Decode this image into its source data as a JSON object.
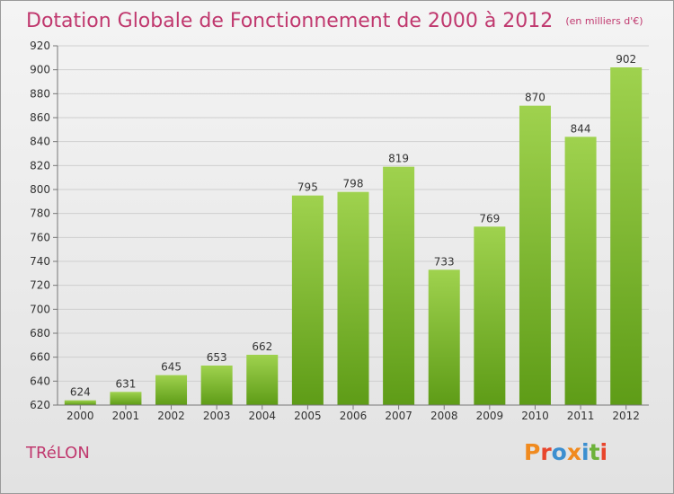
{
  "header": {
    "title": "Dotation Globale de Fonctionnement de 2000 à 2012",
    "subtitle": "(en milliers d'€)"
  },
  "footer": {
    "commune": "TRéLON",
    "brand": "Proxiti"
  },
  "colors": {
    "title": "#c0386e",
    "bar_top": "#9fd24e",
    "bar_bottom": "#5e9c17",
    "grid": "#cfcfcf",
    "logo": [
      "#f08a1e",
      "#e8452c",
      "#3c8fd0",
      "#f08a1e",
      "#3c8fd0",
      "#6db23a",
      "#e8452c"
    ]
  },
  "chart_data": {
    "type": "bar",
    "categories": [
      "2000",
      "2001",
      "2002",
      "2003",
      "2004",
      "2005",
      "2006",
      "2007",
      "2008",
      "2009",
      "2010",
      "2011",
      "2012"
    ],
    "values": [
      624,
      631,
      645,
      653,
      662,
      795,
      798,
      819,
      733,
      769,
      870,
      844,
      902
    ],
    "ylim": [
      620,
      920
    ],
    "yticks": [
      620,
      640,
      660,
      680,
      700,
      720,
      740,
      760,
      780,
      800,
      820,
      840,
      860,
      880,
      900,
      920
    ],
    "grid": true,
    "data_labels": true
  }
}
